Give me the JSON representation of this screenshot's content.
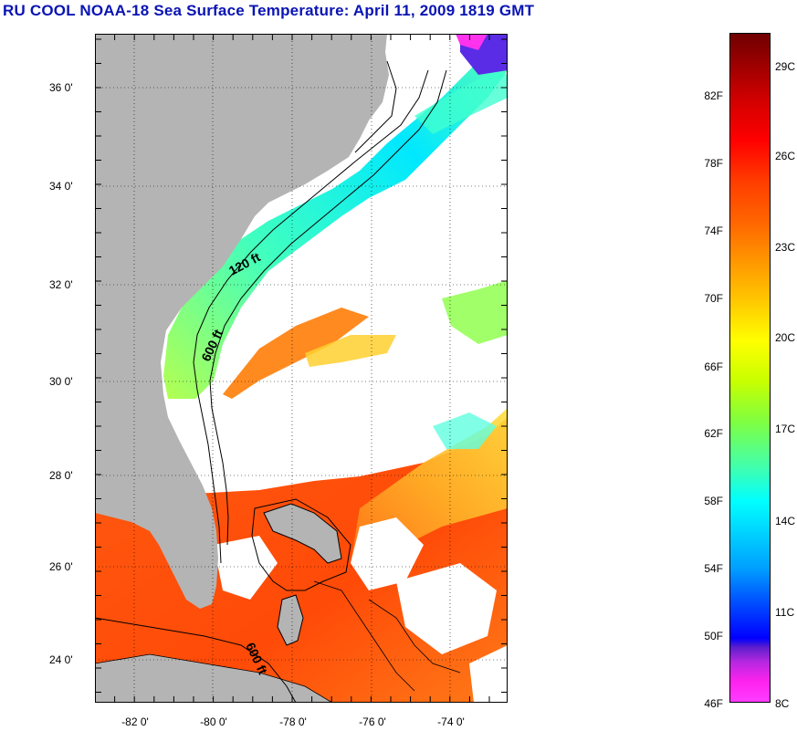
{
  "title": "RU COOL  NOAA-18  Sea Surface Temperature:  April 11, 2009 1819 GMT",
  "map": {
    "lat_labels": [
      "36 0'",
      "34 0'",
      "32 0'",
      "30 0'",
      "28 0'",
      "26 0'",
      "24 0'"
    ],
    "lon_labels": [
      "-82 0'",
      "-80 0'",
      "-78 0'",
      "-76 0'",
      "-74 0'"
    ],
    "contour_labels": {
      "shelf_120": "120 ft",
      "shelf_600_north": "600 ft",
      "shelf_600_south": "600 ft"
    },
    "lat_range": [
      23,
      37
    ],
    "lon_range": [
      -83,
      -72.6
    ],
    "colors": {
      "land": "#b4b4b4",
      "cloud": "#ffffff",
      "warm_water": "#ff5a10",
      "cool_water": "#00e6e6"
    }
  },
  "colorbar": {
    "fahrenheit_labels": [
      "82F",
      "78F",
      "74F",
      "70F",
      "66F",
      "62F",
      "58F",
      "54F",
      "50F",
      "46F"
    ],
    "celsius_labels": [
      "29C",
      "26C",
      "23C",
      "20C",
      "17C",
      "14C",
      "11C",
      "8C"
    ]
  }
}
